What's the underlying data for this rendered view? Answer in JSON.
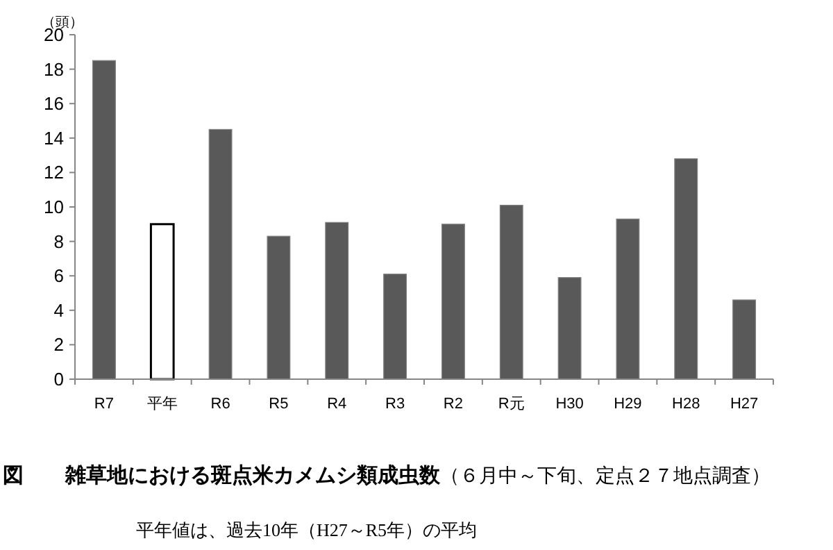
{
  "chart_data": {
    "type": "bar",
    "title": "図　　雑草地における斑点米カメムシ類成虫数",
    "subtitle": "（６月中～下旬、定点２７地点調査）",
    "ylabel": "（頭）",
    "annotations": [
      "平年値は、過去10年（H27～R5年）の平均"
    ],
    "categories": [
      "R7",
      "平年",
      "R6",
      "R5",
      "R4",
      "R3",
      "R2",
      "R元",
      "H30",
      "H29",
      "H28",
      "H27"
    ],
    "values": [
      18.5,
      9.0,
      14.5,
      8.3,
      9.1,
      6.1,
      9.0,
      10.1,
      5.9,
      9.3,
      12.8,
      4.6
    ],
    "colors": [
      "#595959",
      "#ffffff",
      "#595959",
      "#595959",
      "#595959",
      "#595959",
      "#595959",
      "#595959",
      "#595959",
      "#595959",
      "#595959",
      "#595959"
    ],
    "ylim": [
      0,
      20
    ],
    "yticks": [
      0,
      2,
      4,
      6,
      8,
      10,
      12,
      14,
      16,
      18,
      20
    ],
    "grid": false
  }
}
